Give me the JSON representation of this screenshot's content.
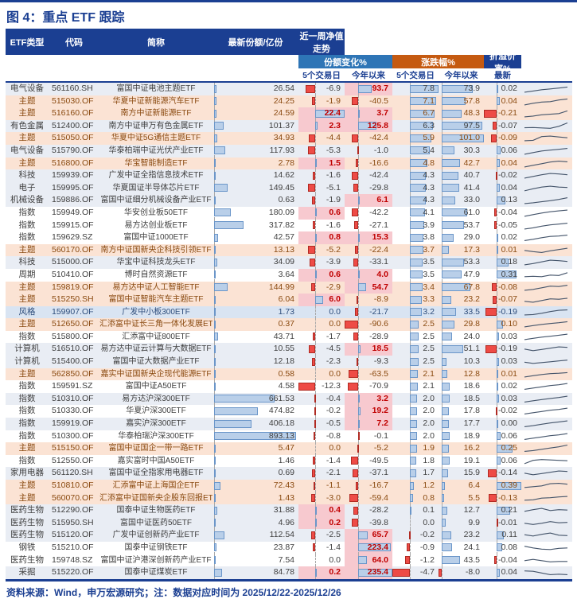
{
  "title": "图 4：重点 ETF 跟踪",
  "footer": "资料来源：Wind，申万宏源研究；注：数据对应时间为 2025/12/22-2025/12/26",
  "header": {
    "etf_type": "ETF类型",
    "code": "代码",
    "name": "简称",
    "latest_share": "最新份额/亿份",
    "share_change_group": "份额变化%",
    "price_change_group": "涨跌幅%",
    "premium_group": "折溢价率%",
    "sub_5d_share": "5个交易日",
    "sub_ytd_share": "今年以来",
    "sub_5d_price": "5个交易日",
    "sub_ytd_price": "今年以来",
    "sub_latest": "最新",
    "sparkline": "近一周净值走势"
  },
  "colors": {
    "navy": "#1b3f92",
    "group_blue": "#2e75b6",
    "group_orange": "#c55a11",
    "row_gray": "#e9edf4",
    "row_peach": "#fbe3d4",
    "row_blue": "#d9e4f2",
    "row_white": "#ffffff",
    "text_default": "#404040",
    "text_peach_row": "#8a4a10",
    "text_blue_row": "#2e4d7b",
    "positive_red_text": "#c00000",
    "highlight_pink": "#f7c9cf",
    "bar_blue_fill": "#b9cfe9",
    "bar_blue_border": "#6b96c9",
    "bar_red_fill": "#ee4b46",
    "bar_red_border": "#b02a22",
    "sparkline": "#44546a"
  },
  "bar_ranges": {
    "share": {
      "min": 0,
      "max": 893.13
    },
    "shr5": {
      "min": -12.3,
      "max": 22.4
    },
    "shrYtd": {
      "min": -90.6,
      "max": 235.4
    },
    "chg5": {
      "min": -4.7,
      "max": 7.8
    },
    "chgYtd": {
      "min": -8.0,
      "max": 101.0
    },
    "prem": {
      "min": -0.21,
      "max": 0.39
    }
  },
  "rows": [
    {
      "type": "电气设备",
      "code": "561160.SH",
      "name": "富国中证电池主题ETF",
      "share": 26.54,
      "shr5": -6.9,
      "shrYtd": 93.7,
      "chg5": 7.8,
      "chgYtd": 73.9,
      "prem": 0.02,
      "bg": "g",
      "spark": [
        0.1,
        0.25,
        0.4,
        0.5,
        0.6,
        0.72
      ]
    },
    {
      "type": "主题",
      "code": "515030.OF",
      "name": "华夏中证新能源汽车ETF",
      "share": 24.25,
      "shr5": -1.9,
      "shrYtd": -40.5,
      "chg5": 7.1,
      "chgYtd": 57.8,
      "prem": 0.04,
      "bg": "p",
      "spark": [
        0.1,
        0.3,
        0.45,
        0.5,
        0.7,
        0.82
      ]
    },
    {
      "type": "主题",
      "code": "516160.OF",
      "name": "南方中证新能源ETF",
      "share": 24.59,
      "shr5": 22.4,
      "shrYtd": 3.7,
      "chg5": 6.7,
      "chgYtd": 48.3,
      "prem": -0.21,
      "bg": "p",
      "spark": [
        0.1,
        0.2,
        0.35,
        0.42,
        0.5,
        0.82
      ]
    },
    {
      "type": "有色金属",
      "code": "512400.OF",
      "name": "南方中证申万有色金属ETF",
      "share": 101.37,
      "shr5": 2.3,
      "shrYtd": 125.8,
      "chg5": 6.3,
      "chgYtd": 97.5,
      "prem": -0.07,
      "bg": "g",
      "spark": [
        0.32,
        0.35,
        0.3,
        0.26,
        0.5,
        0.9
      ]
    },
    {
      "type": "主题",
      "code": "515050.OF",
      "name": "华夏中证5G通信主题ETF",
      "share": 34.93,
      "shr5": -4.4,
      "shrYtd": -42.4,
      "chg5": 5.9,
      "chgYtd": 101.0,
      "prem": -0.09,
      "bg": "p",
      "spark": [
        0.2,
        0.25,
        0.7,
        0.75,
        0.65,
        0.55
      ]
    },
    {
      "type": "电气设备",
      "code": "515790.OF",
      "name": "华泰柏瑞中证光伏产业ETF",
      "share": 117.93,
      "shr5": -5.3,
      "shrYtd": -1.0,
      "chg5": 5.4,
      "chgYtd": 30.3,
      "prem": 0.06,
      "bg": "g",
      "spark": [
        0.1,
        0.3,
        0.5,
        0.6,
        0.7,
        0.8
      ]
    },
    {
      "type": "主题",
      "code": "516800.OF",
      "name": "华宝智能制造ETF",
      "share": 2.78,
      "shr5": 1.5,
      "shrYtd": -16.6,
      "chg5": 4.8,
      "chgYtd": 42.7,
      "prem": 0.04,
      "bg": "p",
      "spark": [
        0.1,
        0.3,
        0.5,
        0.7,
        0.8,
        0.72
      ]
    },
    {
      "type": "科技",
      "code": "159939.OF",
      "name": "广发中证全指信息技术ETF",
      "share": 14.62,
      "shr5": -1.6,
      "shrYtd": -42.4,
      "chg5": 4.3,
      "chgYtd": 40.7,
      "prem": -0.02,
      "bg": "g",
      "spark": [
        0.2,
        0.4,
        0.6,
        0.75,
        0.7,
        0.6
      ]
    },
    {
      "type": "电子",
      "code": "159995.OF",
      "name": "华夏国证半导体芯片ETF",
      "share": 149.45,
      "shr5": -5.1,
      "shrYtd": -29.8,
      "chg5": 4.3,
      "chgYtd": 41.4,
      "prem": 0.04,
      "bg": "g",
      "spark": [
        0.2,
        0.45,
        0.65,
        0.75,
        0.65,
        0.6
      ]
    },
    {
      "type": "机械设备",
      "code": "159886.OF",
      "name": "富国中证细分机械设备产业ETF",
      "share": 0.63,
      "shr5": -1.9,
      "shrYtd": 6.1,
      "chg5": 4.3,
      "chgYtd": 33.0,
      "prem": 0.13,
      "bg": "g",
      "spark": [
        0.1,
        0.2,
        0.32,
        0.45,
        0.6,
        0.8
      ]
    },
    {
      "type": "指数",
      "code": "159949.OF",
      "name": "华安创业板50ETF",
      "share": 180.09,
      "shr5": 0.6,
      "shrYtd": -42.2,
      "chg5": 4.1,
      "chgYtd": 61.0,
      "prem": -0.04,
      "bg": "w",
      "spark": [
        0.1,
        0.3,
        0.5,
        0.65,
        0.75,
        0.85
      ]
    },
    {
      "type": "指数",
      "code": "159915.OF",
      "name": "易方达创业板ETF",
      "share": 317.82,
      "shr5": -1.6,
      "shrYtd": -27.1,
      "chg5": 3.9,
      "chgYtd": 53.7,
      "prem": -0.05,
      "bg": "w",
      "spark": [
        0.1,
        0.25,
        0.45,
        0.6,
        0.7,
        0.8
      ]
    },
    {
      "type": "指数",
      "code": "159629.SZ",
      "name": "富国中证1000ETF",
      "share": 42.57,
      "shr5": 0.8,
      "shrYtd": 15.3,
      "chg5": 3.8,
      "chgYtd": 29.0,
      "prem": 0.02,
      "bg": "w",
      "spark": [
        0.15,
        0.3,
        0.5,
        0.65,
        0.7,
        0.8
      ]
    },
    {
      "type": "主题",
      "code": "560170.OF",
      "name": "南方中证国新央企科技引领ETF",
      "share": 13.13,
      "shr5": -5.2,
      "shrYtd": -22.4,
      "chg5": 3.7,
      "chgYtd": 17.3,
      "prem": 0.01,
      "bg": "p",
      "spark": [
        0.5,
        0.35,
        0.25,
        0.45,
        0.6,
        0.75
      ]
    },
    {
      "type": "科技",
      "code": "515000.OF",
      "name": "华宝中证科技龙头ETF",
      "share": 34.09,
      "shr5": -3.9,
      "shrYtd": -33.1,
      "chg5": 3.5,
      "chgYtd": 53.3,
      "prem": 0.18,
      "bg": "g",
      "spark": [
        0.2,
        0.35,
        0.55,
        0.75,
        0.7,
        0.6
      ]
    },
    {
      "type": "周期",
      "code": "510410.OF",
      "name": "博时自然资源ETF",
      "share": 3.64,
      "shr5": 0.6,
      "shrYtd": 4.0,
      "chg5": 3.5,
      "chgYtd": 47.9,
      "prem": 0.31,
      "bg": "w",
      "spark": [
        0.3,
        0.35,
        0.3,
        0.5,
        0.45,
        0.78
      ]
    },
    {
      "type": "主题",
      "code": "159819.OF",
      "name": "易方达中证人工智能ETF",
      "share": 144.99,
      "shr5": -2.9,
      "shrYtd": 54.7,
      "chg5": 3.4,
      "chgYtd": 67.8,
      "prem": -0.08,
      "bg": "p",
      "spark": [
        0.2,
        0.3,
        0.5,
        0.7,
        0.65,
        0.8
      ]
    },
    {
      "type": "主题",
      "code": "515250.SH",
      "name": "富国中证智能汽车主题ETF",
      "share": 6.04,
      "shr5": 6.0,
      "shrYtd": -8.9,
      "chg5": 3.3,
      "chgYtd": 23.2,
      "prem": -0.07,
      "bg": "p",
      "spark": [
        0.3,
        0.2,
        0.4,
        0.6,
        0.55,
        0.68
      ]
    },
    {
      "type": "风格",
      "code": "159907.OF",
      "name": "广发中小板300ETF",
      "share": 1.73,
      "shr5": 0.0,
      "shrYtd": -21.7,
      "chg5": 3.2,
      "chgYtd": 33.5,
      "prem": -0.19,
      "bg": "b",
      "spark": [
        0.2,
        0.25,
        0.4,
        0.6,
        0.75,
        0.8
      ]
    },
    {
      "type": "主题",
      "code": "512650.OF",
      "name": "汇添富中证长三角一体化发展ETF",
      "share": 0.37,
      "shr5": 0.0,
      "shrYtd": -90.6,
      "chg5": 2.5,
      "chgYtd": 29.8,
      "prem": 0.1,
      "bg": "p",
      "spark": [
        0.2,
        0.35,
        0.5,
        0.6,
        0.7,
        0.82
      ]
    },
    {
      "type": "指数",
      "code": "515800.OF",
      "name": "汇添富中证800ETF",
      "share": 43.71,
      "shr5": -1.7,
      "shrYtd": -28.9,
      "chg5": 2.5,
      "chgYtd": 24.0,
      "prem": 0.03,
      "bg": "w",
      "spark": [
        0.2,
        0.35,
        0.5,
        0.6,
        0.72,
        0.85
      ]
    },
    {
      "type": "计算机",
      "code": "516510.OF",
      "name": "易方达中证云计算与大数据ETF",
      "share": 10.55,
      "shr5": -4.5,
      "shrYtd": 18.5,
      "chg5": 2.5,
      "chgYtd": 51.1,
      "prem": -0.19,
      "bg": "g",
      "spark": [
        0.5,
        0.3,
        0.45,
        0.6,
        0.75,
        0.7
      ]
    },
    {
      "type": "计算机",
      "code": "515400.OF",
      "name": "富国中证大数据产业ETF",
      "share": 12.18,
      "shr5": -2.3,
      "shrYtd": -9.3,
      "chg5": 2.5,
      "chgYtd": 10.3,
      "prem": 0.03,
      "bg": "g",
      "spark": [
        0.45,
        0.3,
        0.4,
        0.5,
        0.6,
        0.7
      ]
    },
    {
      "type": "主题",
      "code": "562850.OF",
      "name": "嘉实中证国新央企现代能源ETF",
      "share": 0.58,
      "shr5": 0.0,
      "shrYtd": -63.5,
      "chg5": 2.1,
      "chgYtd": 12.8,
      "prem": 0.01,
      "bg": "p",
      "spark": [
        0.2,
        0.35,
        0.5,
        0.6,
        0.65,
        0.72
      ]
    },
    {
      "type": "指数",
      "code": "159591.SZ",
      "name": "富国中证A50ETF",
      "share": 4.58,
      "shr5": -12.3,
      "shrYtd": -70.9,
      "chg5": 2.1,
      "chgYtd": 18.6,
      "prem": 0.02,
      "bg": "w",
      "spark": [
        0.15,
        0.3,
        0.45,
        0.6,
        0.7,
        0.85
      ]
    },
    {
      "type": "指数",
      "code": "510310.OF",
      "name": "易方达沪深300ETF",
      "share": 661.53,
      "shr5": -0.4,
      "shrYtd": 3.2,
      "chg5": 2.0,
      "chgYtd": 18.5,
      "prem": 0.03,
      "bg": "g",
      "spark": [
        0.15,
        0.3,
        0.45,
        0.58,
        0.7,
        0.85
      ]
    },
    {
      "type": "指数",
      "code": "510330.OF",
      "name": "华夏沪深300ETF",
      "share": 474.82,
      "shr5": -0.2,
      "shrYtd": 19.2,
      "chg5": 2.0,
      "chgYtd": 17.8,
      "prem": -0.02,
      "bg": "w",
      "spark": [
        0.15,
        0.3,
        0.45,
        0.6,
        0.7,
        0.85
      ]
    },
    {
      "type": "指数",
      "code": "159919.OF",
      "name": "嘉实沪深300ETF",
      "share": 406.18,
      "shr5": -0.5,
      "shrYtd": 7.2,
      "chg5": 2.0,
      "chgYtd": 17.7,
      "prem": 0.0,
      "bg": "g",
      "spark": [
        0.15,
        0.28,
        0.45,
        0.6,
        0.72,
        0.85
      ]
    },
    {
      "type": "指数",
      "code": "510300.OF",
      "name": "华泰柏瑞沪深300ETF",
      "share": 893.13,
      "shr5": -0.8,
      "shrYtd": -0.1,
      "chg5": 2.0,
      "chgYtd": 18.9,
      "prem": 0.06,
      "bg": "w",
      "spark": [
        0.15,
        0.3,
        0.45,
        0.6,
        0.7,
        0.85
      ]
    },
    {
      "type": "主题",
      "code": "515150.OF",
      "name": "富国中证国企一带一路ETF",
      "share": 5.47,
      "shr5": 0.0,
      "shrYtd": -5.2,
      "chg5": 1.9,
      "chgYtd": 16.2,
      "prem": 0.25,
      "bg": "p",
      "spark": [
        0.15,
        0.25,
        0.4,
        0.55,
        0.7,
        0.9
      ]
    },
    {
      "type": "指数",
      "code": "512550.OF",
      "name": "嘉实富时中国A50ETF",
      "share": 1.46,
      "shr5": -1.4,
      "shrYtd": -49.5,
      "chg5": 1.8,
      "chgYtd": 19.1,
      "prem": 0.06,
      "bg": "w",
      "spark": [
        0.2,
        0.6,
        0.7,
        0.65,
        0.6,
        0.55
      ]
    },
    {
      "type": "家用电器",
      "code": "561120.SH",
      "name": "富国中证全指家用电器ETF",
      "share": 0.69,
      "shr5": -2.1,
      "shrYtd": -37.1,
      "chg5": 1.7,
      "chgYtd": 15.9,
      "prem": -0.14,
      "bg": "g",
      "spark": [
        0.5,
        0.3,
        0.45,
        0.6,
        0.75,
        0.7
      ]
    },
    {
      "type": "主题",
      "code": "510810.OF",
      "name": "汇添富中证上海国企ETF",
      "share": 72.43,
      "shr5": -1.1,
      "shrYtd": -16.7,
      "chg5": 1.2,
      "chgYtd": 6.4,
      "prem": 0.39,
      "bg": "p",
      "spark": [
        0.3,
        0.4,
        0.5,
        0.75,
        0.8,
        0.7
      ]
    },
    {
      "type": "主题",
      "code": "560070.OF",
      "name": "汇添富中证国新央企股东回报ETF",
      "share": 1.43,
      "shr5": -3.0,
      "shrYtd": -59.4,
      "chg5": 0.8,
      "chgYtd": 5.5,
      "prem": -0.13,
      "bg": "p",
      "spark": [
        0.3,
        0.35,
        0.55,
        0.6,
        0.7,
        0.75
      ]
    },
    {
      "type": "医药生物",
      "code": "512290.OF",
      "name": "国泰中证生物医药ETF",
      "share": 31.88,
      "shr5": 0.4,
      "shrYtd": -28.2,
      "chg5": 0.1,
      "chgYtd": 12.7,
      "prem": 0.21,
      "bg": "g",
      "spark": [
        0.4,
        0.6,
        0.75,
        0.5,
        0.6,
        0.55
      ]
    },
    {
      "type": "医药生物",
      "code": "515950.SH",
      "name": "富国中证医药50ETF",
      "share": 4.96,
      "shr5": 0.2,
      "shrYtd": -39.8,
      "chg5": 0.0,
      "chgYtd": 9.9,
      "prem": -0.01,
      "bg": "g",
      "spark": [
        0.5,
        0.35,
        0.5,
        0.7,
        0.55,
        0.6
      ]
    },
    {
      "type": "医药生物",
      "code": "515120.OF",
      "name": "广发中证创新药产业ETF",
      "share": 112.54,
      "shr5": -2.5,
      "shrYtd": 65.7,
      "chg5": -0.2,
      "chgYtd": 23.2,
      "prem": 0.11,
      "bg": "g",
      "spark": [
        0.55,
        0.4,
        0.6,
        0.75,
        0.5,
        0.45
      ]
    },
    {
      "type": "钢铁",
      "code": "515210.OF",
      "name": "国泰中证钢铁ETF",
      "share": 23.87,
      "shr5": -1.4,
      "shrYtd": 223.4,
      "chg5": -0.9,
      "chgYtd": 24.1,
      "prem": 0.08,
      "bg": "w",
      "spark": [
        0.7,
        0.5,
        0.35,
        0.3,
        0.45,
        0.5
      ]
    },
    {
      "type": "医药生物",
      "code": "159748.SZ",
      "name": "富国中证沪港深创新药产业ETF",
      "share": 7.54,
      "shr5": 0.0,
      "shrYtd": 64.0,
      "chg5": -1.2,
      "chgYtd": 43.5,
      "prem": -0.04,
      "bg": "w",
      "spark": [
        0.5,
        0.65,
        0.5,
        0.35,
        0.4,
        0.4
      ]
    },
    {
      "type": "采掘",
      "code": "515220.OF",
      "name": "国泰中证煤炭ETF",
      "share": 84.78,
      "shr5": 0.2,
      "shrYtd": 235.4,
      "chg5": -4.7,
      "chgYtd": -8.0,
      "prem": 0.04,
      "bg": "g",
      "spark": [
        0.7,
        0.65,
        0.45,
        0.25,
        0.3,
        0.25
      ]
    }
  ]
}
